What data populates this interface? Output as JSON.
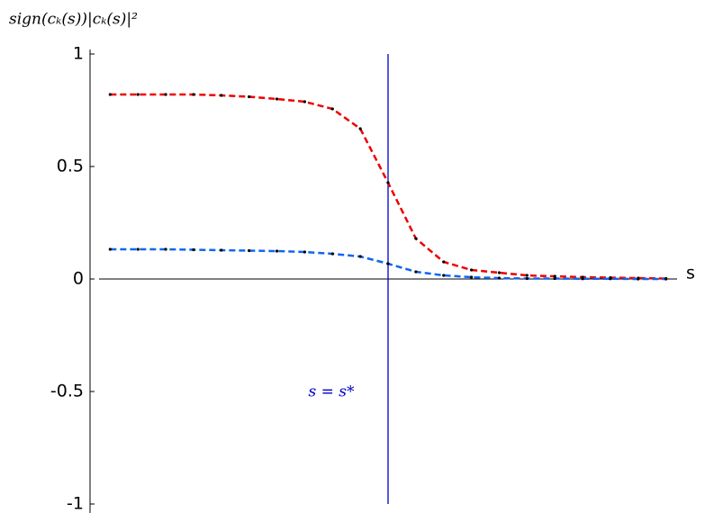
{
  "chart_data": {
    "type": "line",
    "y_label": "sign(cₖ(s))|cₖ(s)|²",
    "x_label": "s",
    "annotation": "s = s*",
    "annotation_color": "#0000cc",
    "vline": 10,
    "vline_color": "#0000cc",
    "x": [
      0,
      1,
      2,
      3,
      4,
      5,
      6,
      7,
      8,
      9,
      10,
      11,
      12,
      13,
      14,
      15,
      16,
      17,
      18,
      19,
      20
    ],
    "xlim": [
      -0.4,
      20.4
    ],
    "ylim": [
      -1,
      1
    ],
    "yticks": [
      1,
      0.5,
      0,
      -0.5,
      -1
    ],
    "series": [
      {
        "color": "#ee0000",
        "values": [
          0.82,
          0.82,
          0.82,
          0.82,
          0.816,
          0.81,
          0.8,
          0.788,
          0.756,
          0.668,
          0.428,
          0.18,
          0.076,
          0.04,
          0.028,
          0.016,
          0.012,
          0.008,
          0.006,
          0.004,
          0.002
        ]
      },
      {
        "color": "#1166ee",
        "values": [
          0.132,
          0.132,
          0.132,
          0.13,
          0.128,
          0.126,
          0.124,
          0.12,
          0.112,
          0.1,
          0.068,
          0.032,
          0.016,
          0.008,
          0.004,
          0.002,
          0.002,
          0.001,
          0.001,
          0,
          0
        ]
      }
    ]
  }
}
